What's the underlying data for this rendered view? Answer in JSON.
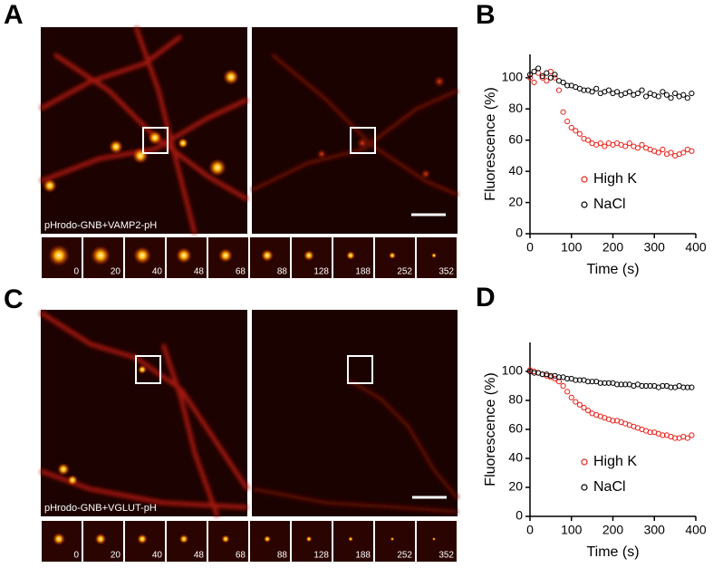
{
  "panel_labels": [
    "A",
    "B",
    "C",
    "D"
  ],
  "images": [
    {
      "caption": "pHrodo-GNB+VAMP2-pH",
      "frame_times": [
        0,
        20,
        40,
        48,
        68,
        88,
        128,
        188,
        252,
        352
      ]
    },
    {
      "caption": "pHrodo-GNB+VGLUT-pH",
      "frame_times": [
        0,
        20,
        40,
        48,
        68,
        88,
        128,
        188,
        252,
        352
      ]
    }
  ],
  "chart_data": [
    {
      "type": "line",
      "xlabel": "Time (s)",
      "ylabel": "Fluorescence (%)",
      "xlim": [
        0,
        400
      ],
      "ylim": [
        0,
        115
      ],
      "xticks": [
        0,
        100,
        200,
        300,
        400
      ],
      "yticks": [
        0,
        20,
        40,
        60,
        80,
        100
      ],
      "legend": "lower right",
      "x": [
        0,
        10,
        20,
        30,
        40,
        50,
        60,
        70,
        80,
        90,
        100,
        110,
        120,
        130,
        140,
        150,
        160,
        170,
        180,
        190,
        200,
        210,
        220,
        230,
        240,
        250,
        260,
        270,
        280,
        290,
        300,
        310,
        320,
        330,
        340,
        350,
        360,
        370,
        380,
        390
      ],
      "series": [
        {
          "name": "High K",
          "color": "#e8231b",
          "values": [
            100,
            97,
            103,
            100,
            98,
            104,
            100,
            92,
            78,
            72,
            68,
            66,
            64,
            61,
            60,
            58,
            57,
            58,
            56,
            58,
            57,
            58,
            57,
            56,
            58,
            56,
            55,
            57,
            55,
            54,
            53,
            52,
            54,
            51,
            52,
            50,
            51,
            52,
            54,
            53
          ]
        },
        {
          "name": "NaCl",
          "color": "#000000",
          "values": [
            102,
            104,
            106,
            101,
            103,
            100,
            102,
            98,
            97,
            95,
            95,
            94,
            93,
            92,
            92,
            91,
            93,
            90,
            91,
            92,
            90,
            91,
            89,
            90,
            91,
            89,
            90,
            92,
            88,
            90,
            89,
            88,
            91,
            89,
            87,
            90,
            88,
            89,
            87,
            90
          ]
        }
      ]
    },
    {
      "type": "line",
      "xlabel": "Time (s)",
      "ylabel": "Fluorescence (%)",
      "xlim": [
        0,
        400
      ],
      "ylim": [
        0,
        120
      ],
      "xticks": [
        0,
        100,
        200,
        300,
        400
      ],
      "yticks": [
        0,
        20,
        40,
        60,
        80,
        100
      ],
      "legend": "lower right",
      "x": [
        0,
        10,
        20,
        30,
        40,
        50,
        60,
        70,
        80,
        90,
        100,
        110,
        120,
        130,
        140,
        150,
        160,
        170,
        180,
        190,
        200,
        210,
        220,
        230,
        240,
        250,
        260,
        270,
        280,
        290,
        300,
        310,
        320,
        330,
        340,
        350,
        360,
        370,
        380,
        390
      ],
      "series": [
        {
          "name": "High K",
          "color": "#e8231b",
          "values": [
            101,
            100,
            99,
            98,
            97,
            96,
            95,
            93,
            90,
            86,
            82,
            79,
            77,
            75,
            73,
            71,
            70,
            69,
            68,
            67,
            66,
            66,
            65,
            64,
            63,
            62,
            61,
            60,
            59,
            58,
            58,
            57,
            56,
            56,
            55,
            54,
            54,
            55,
            54,
            56
          ]
        },
        {
          "name": "NaCl",
          "color": "#000000",
          "values": [
            100,
            99,
            99,
            98,
            98,
            97,
            97,
            96,
            96,
            95,
            95,
            94,
            94,
            94,
            93,
            93,
            93,
            92,
            92,
            92,
            92,
            91,
            91,
            91,
            91,
            90,
            91,
            90,
            90,
            90,
            90,
            89,
            90,
            90,
            89,
            89,
            90,
            89,
            89,
            89
          ]
        }
      ]
    }
  ]
}
